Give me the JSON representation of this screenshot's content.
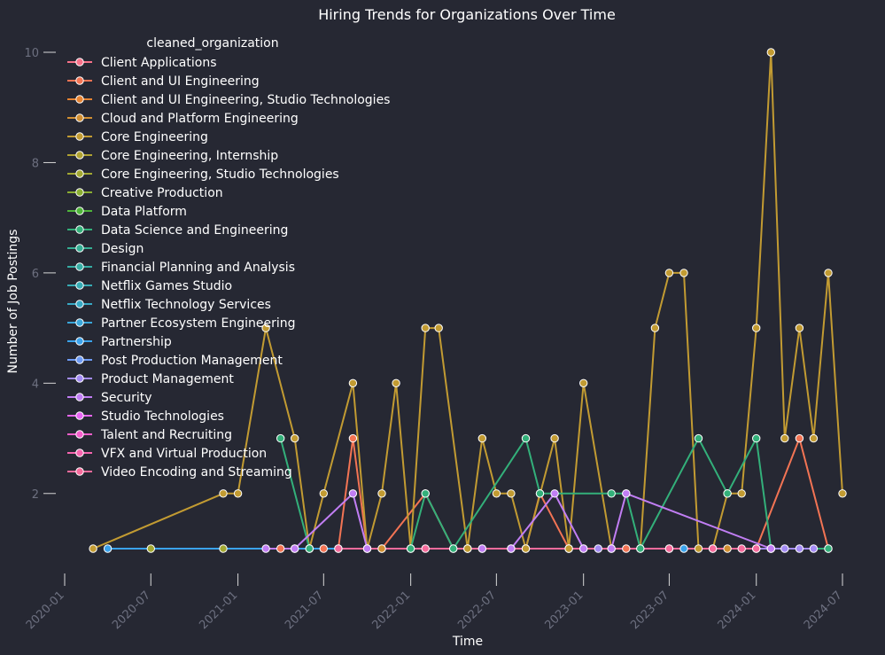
{
  "chart_data": {
    "type": "line",
    "title": "Hiring Trends for Organizations Over Time",
    "xlabel": "Time",
    "ylabel": "Number of Job Postings",
    "x_ticks": [
      "2020-01",
      "2020-07",
      "2021-01",
      "2021-07",
      "2022-01",
      "2022-07",
      "2023-01",
      "2023-07",
      "2024-01",
      "2024-07"
    ],
    "y_ticks": [
      2,
      4,
      6,
      8,
      10
    ],
    "xlim": [
      "2019-12-01",
      "2024-07-20"
    ],
    "ylim": [
      0.3,
      10.6
    ],
    "grid": false,
    "legend_title": "cleaned_organization",
    "legend_position": "top-left",
    "series": [
      {
        "name": "Client Applications",
        "color": "#f77189",
        "points": []
      },
      {
        "name": "Client and UI Engineering",
        "color": "#f37454",
        "points": [
          [
            "2021-04-01",
            1
          ],
          [
            "2021-05-01",
            1
          ],
          [
            "2021-06-01",
            1
          ],
          [
            "2021-07-01",
            1
          ],
          [
            "2021-08-01",
            1
          ],
          [
            "2021-09-01",
            3
          ],
          [
            "2021-10-01",
            1
          ],
          [
            "2021-11-01",
            1
          ],
          [
            "2022-02-01",
            2
          ],
          [
            "2022-04-01",
            1
          ],
          [
            "2022-05-01",
            1
          ],
          [
            "2022-06-01",
            1
          ],
          [
            "2022-08-01",
            1
          ],
          [
            "2022-09-01",
            1
          ],
          [
            "2022-10-01",
            2
          ],
          [
            "2022-12-01",
            1
          ],
          [
            "2023-01-01",
            1
          ],
          [
            "2023-04-01",
            1
          ],
          [
            "2023-07-01",
            1
          ],
          [
            "2024-01-01",
            1
          ],
          [
            "2024-04-01",
            3
          ],
          [
            "2024-06-01",
            1
          ]
        ]
      },
      {
        "name": "Client and UI Engineering, Studio Technologies",
        "color": "#e68332",
        "points": []
      },
      {
        "name": "Cloud and Platform Engineering",
        "color": "#d18f32",
        "points": [
          [
            "2021-11-01",
            1
          ],
          [
            "2022-05-01",
            1
          ],
          [
            "2022-12-01",
            1
          ],
          [
            "2023-11-01",
            1
          ]
        ]
      },
      {
        "name": "Core Engineering",
        "color": "#c29b32",
        "points": [
          [
            "2020-03-01",
            1
          ],
          [
            "2020-12-01",
            2
          ],
          [
            "2021-01-01",
            2
          ],
          [
            "2021-03-01",
            5
          ],
          [
            "2021-05-01",
            3
          ],
          [
            "2021-06-01",
            1
          ],
          [
            "2021-07-01",
            2
          ],
          [
            "2021-09-01",
            4
          ],
          [
            "2021-10-01",
            1
          ],
          [
            "2021-11-01",
            2
          ],
          [
            "2021-12-01",
            4
          ],
          [
            "2022-01-01",
            1
          ],
          [
            "2022-02-01",
            5
          ],
          [
            "2022-03-01",
            5
          ],
          [
            "2022-05-01",
            1
          ],
          [
            "2022-06-01",
            3
          ],
          [
            "2022-07-01",
            2
          ],
          [
            "2022-08-01",
            2
          ],
          [
            "2022-09-01",
            1
          ],
          [
            "2022-11-01",
            3
          ],
          [
            "2022-12-01",
            1
          ],
          [
            "2023-01-01",
            4
          ],
          [
            "2023-03-01",
            1
          ],
          [
            "2023-05-01",
            1
          ],
          [
            "2023-06-01",
            5
          ],
          [
            "2023-07-01",
            6
          ],
          [
            "2023-08-01",
            6
          ],
          [
            "2023-09-01",
            1
          ],
          [
            "2023-10-01",
            1
          ],
          [
            "2023-11-01",
            2
          ],
          [
            "2023-12-01",
            2
          ],
          [
            "2024-01-01",
            5
          ],
          [
            "2024-02-01",
            10
          ],
          [
            "2024-03-01",
            3
          ],
          [
            "2024-04-01",
            5
          ],
          [
            "2024-05-01",
            3
          ],
          [
            "2024-06-01",
            6
          ],
          [
            "2024-07-01",
            2
          ]
        ]
      },
      {
        "name": "Core Engineering, Internship",
        "color": "#b0a232",
        "points": []
      },
      {
        "name": "Core Engineering, Studio Technologies",
        "color": "#a2a832",
        "points": [
          [
            "2020-07-01",
            1
          ],
          [
            "2020-12-01",
            1
          ]
        ]
      },
      {
        "name": "Creative Production",
        "color": "#8aae32",
        "points": []
      },
      {
        "name": "Data Platform",
        "color": "#4fb53a",
        "points": []
      },
      {
        "name": "Data Science and Engineering",
        "color": "#33b07a",
        "points": [
          [
            "2021-04-01",
            3
          ],
          [
            "2021-06-01",
            1
          ],
          [
            "2022-01-01",
            1
          ],
          [
            "2022-02-01",
            2
          ],
          [
            "2022-04-01",
            1
          ],
          [
            "2022-09-01",
            3
          ],
          [
            "2022-10-01",
            2
          ],
          [
            "2023-03-01",
            2
          ],
          [
            "2023-04-01",
            2
          ],
          [
            "2023-05-01",
            1
          ],
          [
            "2023-09-01",
            3
          ],
          [
            "2023-11-01",
            2
          ],
          [
            "2024-01-01",
            3
          ],
          [
            "2024-02-01",
            1
          ],
          [
            "2024-06-01",
            1
          ]
        ]
      },
      {
        "name": "Design",
        "color": "#35ae93",
        "points": []
      },
      {
        "name": "Financial Planning and Analysis",
        "color": "#36ada4",
        "points": []
      },
      {
        "name": "Netflix Games Studio",
        "color": "#37abb4",
        "points": []
      },
      {
        "name": "Netflix Technology Services",
        "color": "#38a9c5",
        "points": []
      },
      {
        "name": "Partner Ecosystem Engineering",
        "color": "#3aa6da",
        "points": []
      },
      {
        "name": "Partnership",
        "color": "#3ba3ec",
        "points": [
          [
            "2020-04-01",
            1
          ],
          [
            "2023-08-01",
            1
          ]
        ]
      },
      {
        "name": "Post Production Management",
        "color": "#6e9bf4",
        "points": []
      },
      {
        "name": "Product Management",
        "color": "#a48cf4",
        "points": [
          [
            "2023-02-01",
            1
          ],
          [
            "2024-02-01",
            1
          ],
          [
            "2024-03-01",
            1
          ],
          [
            "2024-04-01",
            1
          ],
          [
            "2024-05-01",
            1
          ]
        ]
      },
      {
        "name": "Security",
        "color": "#c17ef4",
        "points": [
          [
            "2021-03-01",
            1
          ],
          [
            "2021-05-01",
            1
          ],
          [
            "2021-09-01",
            2
          ],
          [
            "2021-10-01",
            1
          ],
          [
            "2022-06-01",
            1
          ],
          [
            "2022-08-01",
            1
          ],
          [
            "2022-11-01",
            2
          ],
          [
            "2023-01-01",
            1
          ],
          [
            "2023-03-01",
            1
          ],
          [
            "2023-04-01",
            2
          ],
          [
            "2024-02-01",
            1
          ]
        ]
      },
      {
        "name": "Studio Technologies",
        "color": "#e866f4",
        "points": []
      },
      {
        "name": "Talent and Recruiting",
        "color": "#f45fcb",
        "points": []
      },
      {
        "name": "VFX and Virtual Production",
        "color": "#f565af",
        "points": []
      },
      {
        "name": "Video Encoding and Streaming",
        "color": "#f66b9c",
        "points": [
          [
            "2021-08-01",
            1
          ],
          [
            "2022-02-01",
            1
          ],
          [
            "2023-07-01",
            1
          ],
          [
            "2023-10-01",
            1
          ],
          [
            "2023-12-01",
            1
          ],
          [
            "2024-01-01",
            1
          ]
        ]
      }
    ]
  }
}
